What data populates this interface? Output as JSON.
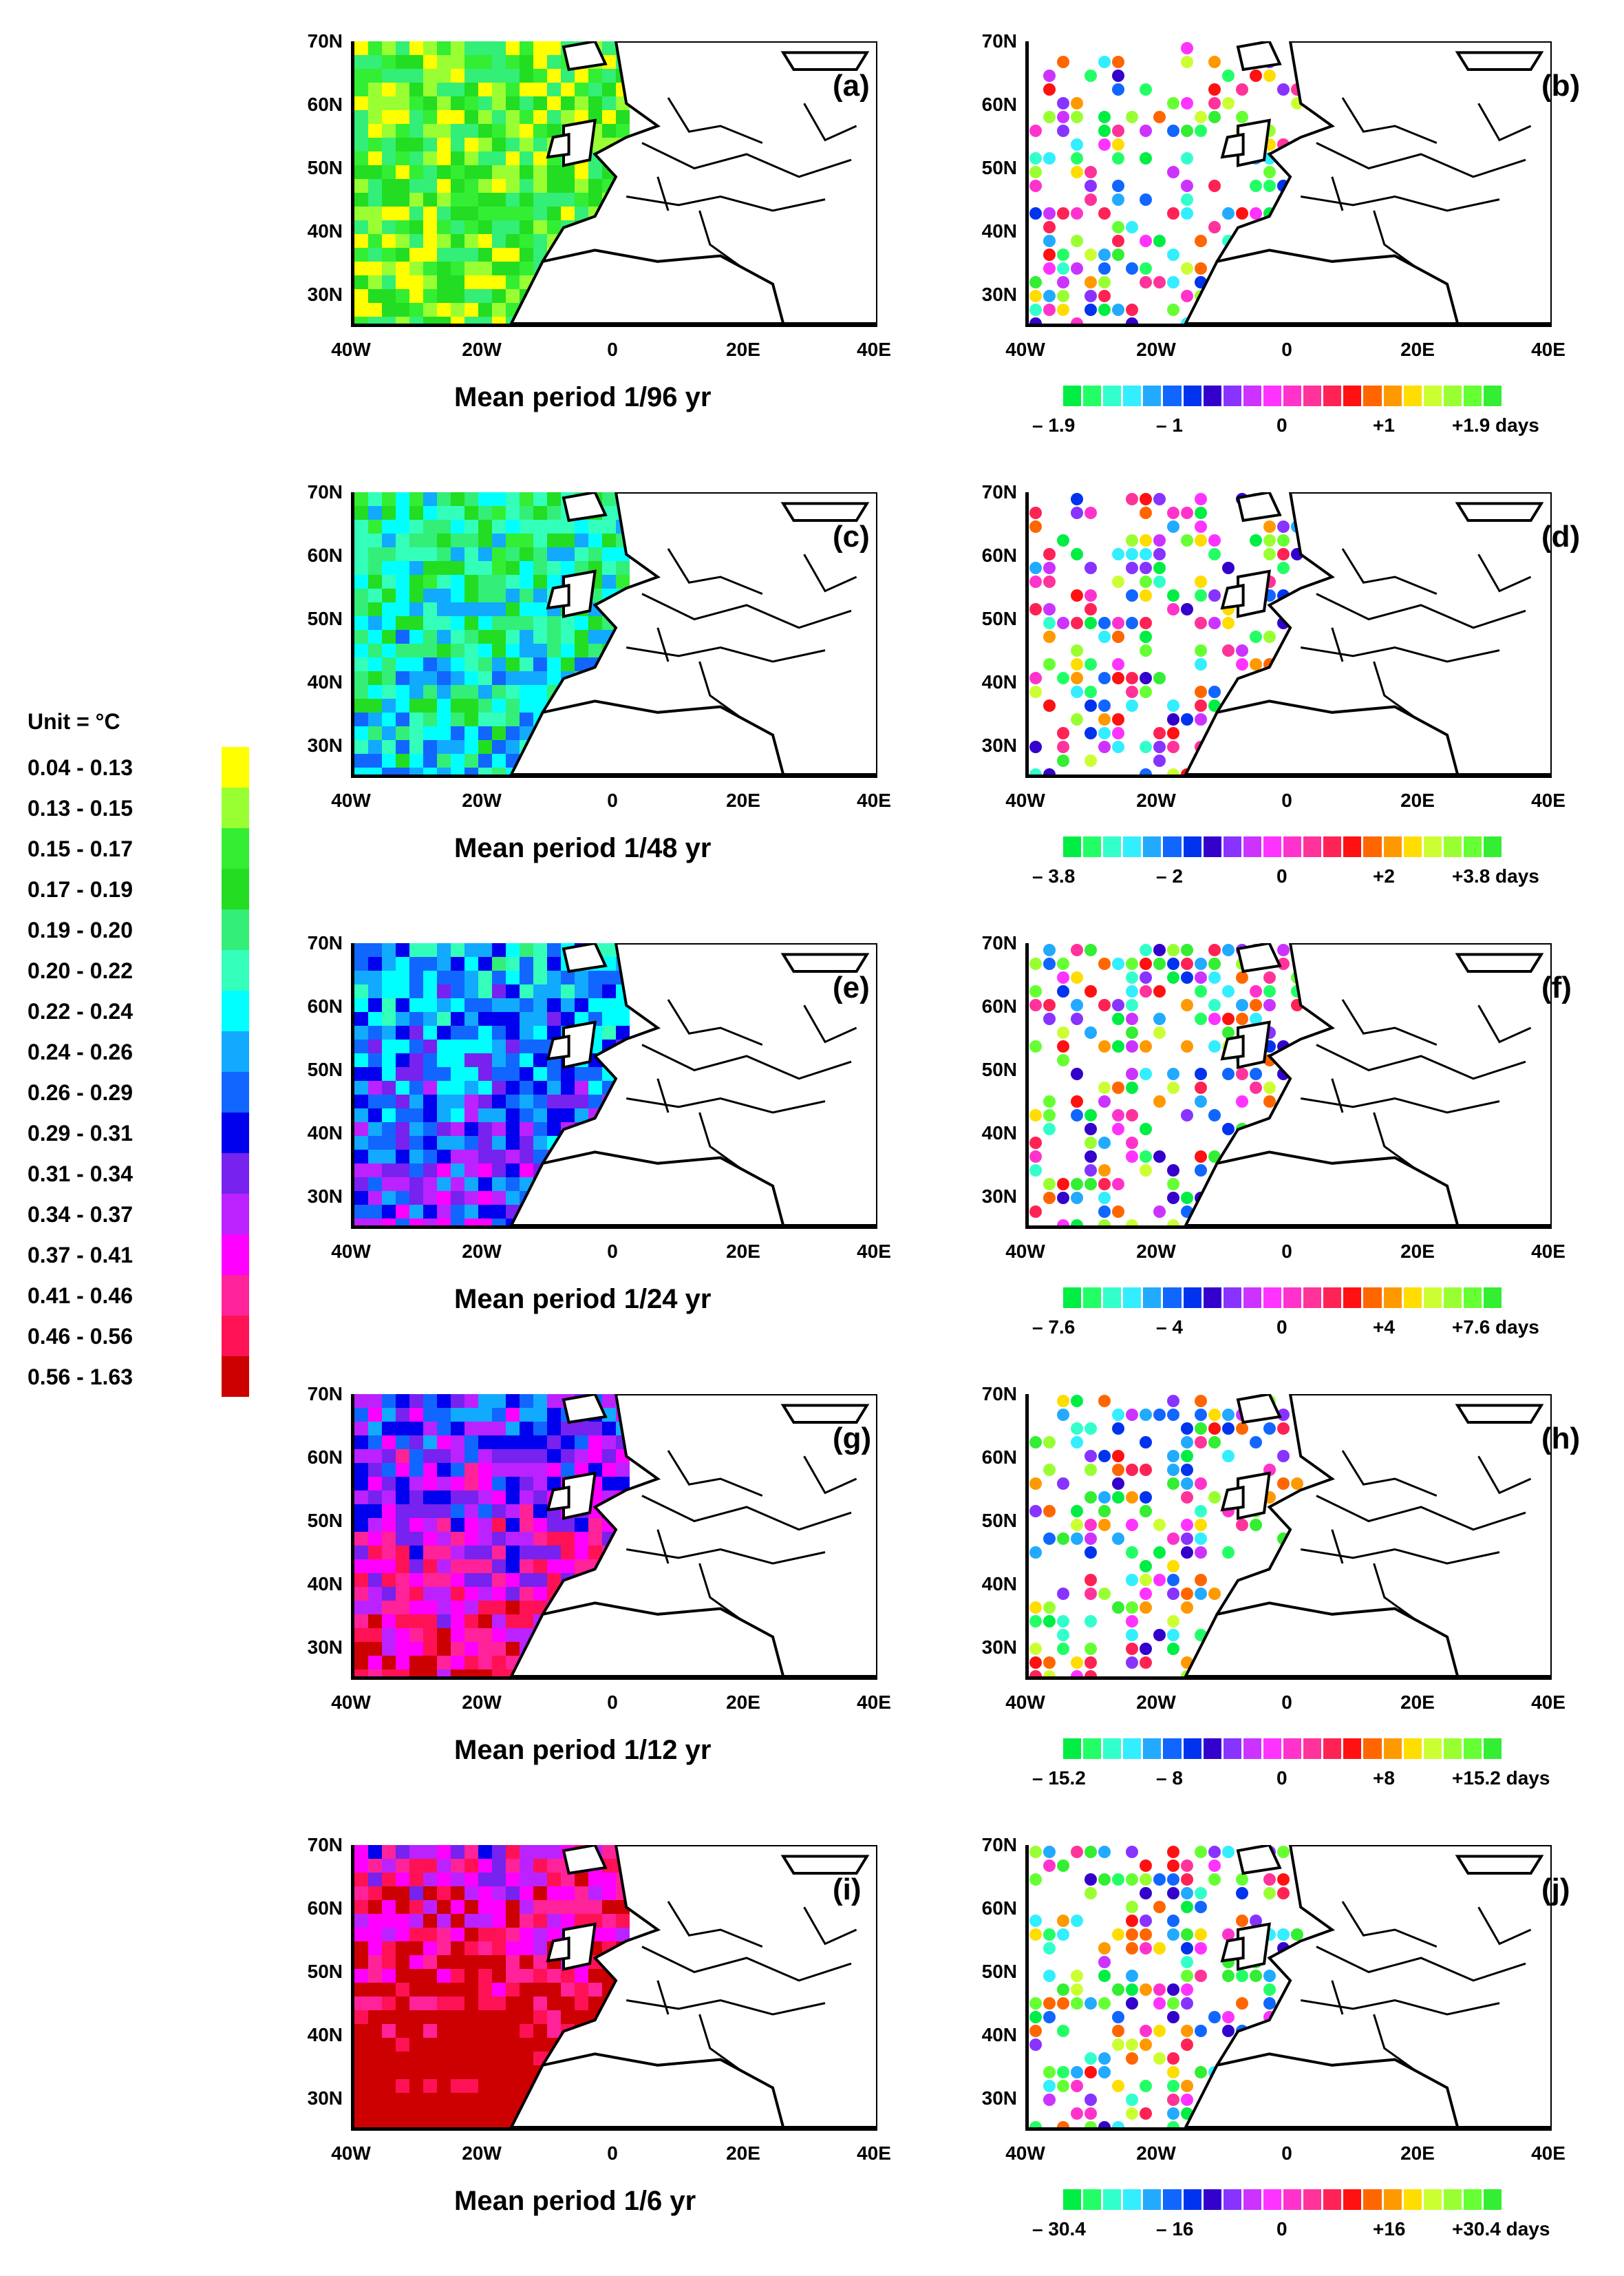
{
  "lat_labels": [
    "70N",
    "60N",
    "50N",
    "40N",
    "30N"
  ],
  "lon_labels": [
    "40W",
    "20W",
    "0",
    "20E",
    "40E"
  ],
  "periods": [
    {
      "left_label": "(a)",
      "right_label": "(b)",
      "caption": "Mean period  1/96 yr",
      "ticks": [
        "– 1.9",
        "– 1",
        "0",
        "+1",
        "+1.9 days"
      ]
    },
    {
      "left_label": "(c)",
      "right_label": "(d)",
      "caption": "Mean period  1/48 yr",
      "ticks": [
        "– 3.8",
        "– 2",
        "0",
        "+2",
        "+3.8 days"
      ]
    },
    {
      "left_label": "(e)",
      "right_label": "(f)",
      "caption": "Mean period 1/24 yr",
      "ticks": [
        "– 7.6",
        "– 4",
        "0",
        "+4",
        "+7.6 days"
      ]
    },
    {
      "left_label": "(g)",
      "right_label": "(h)",
      "caption": "Mean period  1/12 yr",
      "ticks": [
        "– 15.2",
        "– 8",
        "0",
        "+8",
        "+15.2 days"
      ]
    },
    {
      "left_label": "(i)",
      "right_label": "(j)",
      "caption": "Mean period  1/6 yr",
      "ticks": [
        "– 30.4",
        "– 16",
        "0",
        "+16",
        "+30.4 days"
      ]
    }
  ],
  "amplitude_legend": {
    "title": "Unit = °C",
    "ranges": [
      "0.04 -  0.13",
      "0.13 -  0.15",
      "0.15 -  0.17",
      "0.17 -  0.19",
      "0.19 -  0.20",
      "0.20 -  0.22",
      "0.22 -  0.24",
      "0.24 -  0.26",
      "0.26 -  0.29",
      "0.29 -  0.31",
      "0.31 -  0.34",
      "0.34 -  0.37",
      "0.37 -  0.41",
      "0.41 -  0.46",
      "0.46 -  0.56",
      "0.56 -  1.63"
    ],
    "colors": [
      "#ffff00",
      "#99ff33",
      "#33ee33",
      "#22dd22",
      "#33ee77",
      "#33ffbb",
      "#00ffff",
      "#11aaff",
      "#1166ff",
      "#0000ee",
      "#7722ee",
      "#bb22ff",
      "#ff00ff",
      "#ff2299",
      "#ff1155",
      "#cc0000"
    ]
  },
  "phase_colorbar_colors": [
    "#00ee44",
    "#22ff66",
    "#33ffcc",
    "#33eeff",
    "#22aaff",
    "#1166ff",
    "#0033ee",
    "#3300cc",
    "#8833ff",
    "#cc33ff",
    "#ff33ff",
    "#ff33cc",
    "#ff3399",
    "#ff2255",
    "#ff1111",
    "#ff6600",
    "#ff9900",
    "#ffdd00",
    "#ccff33",
    "#99ff33",
    "#66ff33",
    "#33ee33"
  ],
  "land_outline_color": "#000000"
}
